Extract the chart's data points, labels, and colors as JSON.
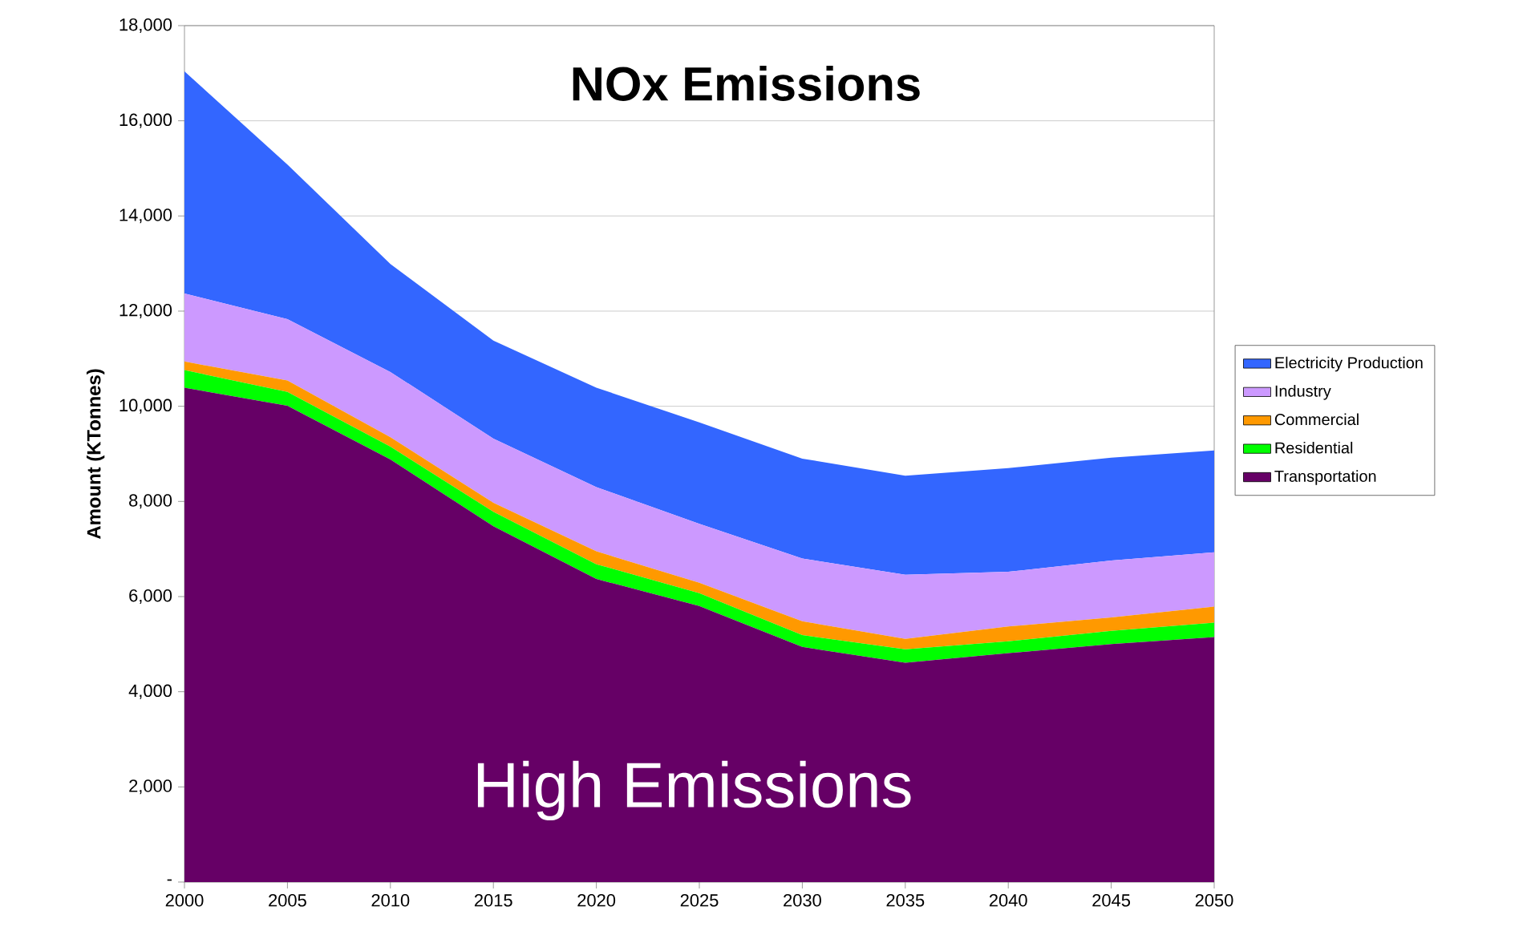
{
  "chart_data": {
    "type": "area",
    "stacked": true,
    "title": "NOx Emissions",
    "ylabel": "Amount (KTonnes)",
    "annotations": [
      "High Emissions"
    ],
    "x": [
      2000,
      2005,
      2010,
      2015,
      2020,
      2025,
      2030,
      2035,
      2040,
      2045,
      2050
    ],
    "series": [
      {
        "name": "Transportation",
        "color": "#660066",
        "values": [
          10390,
          10010,
          8880,
          7480,
          6370,
          5800,
          4940,
          4610,
          4810,
          5000,
          5150
        ]
      },
      {
        "name": "Residential",
        "color": "#00ff00",
        "values": [
          370,
          290,
          270,
          300,
          310,
          270,
          250,
          280,
          250,
          280,
          300
        ]
      },
      {
        "name": "Commercial",
        "color": "#ff9900",
        "values": [
          180,
          240,
          200,
          190,
          270,
          220,
          290,
          220,
          310,
          280,
          340
        ]
      },
      {
        "name": "Industry",
        "color": "#cc99ff",
        "values": [
          1430,
          1290,
          1370,
          1350,
          1350,
          1240,
          1320,
          1350,
          1150,
          1200,
          1140
        ]
      },
      {
        "name": "Electricity Production",
        "color": "#3366ff",
        "values": [
          4670,
          3250,
          2270,
          2060,
          2090,
          2130,
          2100,
          2080,
          2180,
          2160,
          2140
        ]
      }
    ],
    "xlim": [
      2000,
      2050
    ],
    "xticks": [
      2000,
      2005,
      2010,
      2015,
      2020,
      2025,
      2030,
      2035,
      2040,
      2045,
      2050
    ],
    "ylim": [
      0,
      18000
    ],
    "yticks": [
      {
        "value": 0,
        "label": "-"
      },
      {
        "value": 2000,
        "label": "2,000"
      },
      {
        "value": 4000,
        "label": "4,000"
      },
      {
        "value": 6000,
        "label": "6,000"
      },
      {
        "value": 8000,
        "label": "8,000"
      },
      {
        "value": 10000,
        "label": "10,000"
      },
      {
        "value": 12000,
        "label": "12,000"
      },
      {
        "value": 14000,
        "label": "14,000"
      },
      {
        "value": 16000,
        "label": "16,000"
      },
      {
        "value": 18000,
        "label": "18,000"
      }
    ],
    "grid": "y",
    "legend": "right"
  }
}
